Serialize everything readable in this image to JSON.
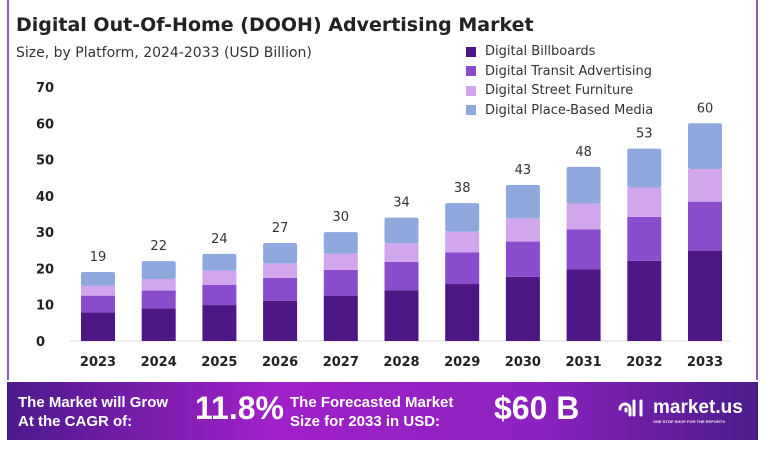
{
  "chart_data": {
    "type": "bar",
    "stacked": true,
    "title": "Digital Out-Of-Home (DOOH) Advertising Market",
    "subtitle": "Size, by Platform, 2024-2033 (USD Billion)",
    "categories": [
      "2023",
      "2024",
      "2025",
      "2026",
      "2027",
      "2028",
      "2029",
      "2030",
      "2031",
      "2032",
      "2033"
    ],
    "totals": [
      "19",
      "22",
      "24",
      "27",
      "30",
      "34",
      "38",
      "43",
      "48",
      "53",
      "60"
    ],
    "series": [
      {
        "name": "Digital Billboards",
        "color": "#4e1684",
        "values": [
          7.9,
          9.0,
          9.9,
          11.1,
          12.5,
          14.0,
          15.7,
          17.7,
          19.7,
          22.1,
          24.9
        ]
      },
      {
        "name": "Digital Transit Advertising",
        "color": "#8a4bcc",
        "values": [
          4.6,
          4.9,
          5.6,
          6.3,
          7.1,
          7.8,
          8.7,
          9.7,
          11.1,
          12.1,
          13.5
        ]
      },
      {
        "name": "Digital Street Furniture",
        "color": "#d2a6ec",
        "values": [
          2.7,
          3.2,
          3.9,
          4.0,
          4.4,
          5.1,
          5.7,
          6.4,
          7.1,
          8.1,
          9.0
        ]
      },
      {
        "name": "Digital Place-Based Media",
        "color": "#8fa8de",
        "values": [
          3.8,
          4.9,
          4.6,
          5.6,
          6.0,
          7.1,
          7.9,
          9.2,
          10.1,
          10.7,
          12.6
        ]
      }
    ],
    "yticks": [
      "0",
      "10",
      "20",
      "30",
      "40",
      "50",
      "60",
      "70"
    ],
    "ylim": [
      0,
      70
    ],
    "grid": false,
    "legend_position": "top-right"
  },
  "banner": {
    "cagr_label_1": "The Market will Grow",
    "cagr_label_2": "At the CAGR of:",
    "cagr_value": "11.8%",
    "forecast_label_1": "The Forecasted Market",
    "forecast_label_2": "Size for 2033 in USD:",
    "forecast_value": "$60 B",
    "logo_text": "market.us",
    "logo_tagline": "ONE STOP SHOP FOR THE REPORTS"
  }
}
